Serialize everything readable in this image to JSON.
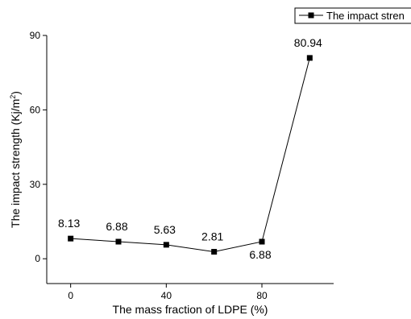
{
  "chart_data": {
    "type": "line",
    "title": "",
    "xlabel": "The mass fraction of LDPE (%)",
    "ylabel_main": "The impact strength (Kj/m",
    "ylabel_sup": "2",
    "ylabel_close": ")",
    "xlim": [
      -10,
      110
    ],
    "ylim": [
      -10,
      90
    ],
    "xticks": [
      0,
      40,
      80
    ],
    "xtick_labels": [
      "0",
      "40",
      "80"
    ],
    "yticks": [
      0,
      30,
      60,
      90
    ],
    "ytick_labels": [
      "0",
      "30",
      "60",
      "90"
    ],
    "grid": false,
    "legend_position": "top-right",
    "series": [
      {
        "name": "The impact stren",
        "color": "#000000",
        "marker": "square",
        "x": [
          0,
          20,
          40,
          60,
          80,
          100
        ],
        "y": [
          8.13,
          6.88,
          5.63,
          2.81,
          6.88,
          80.94
        ],
        "labels": [
          "8.13",
          "6.88",
          "5.63",
          "2.81",
          "6.88",
          "80.94"
        ],
        "label_side": [
          "above",
          "above",
          "above",
          "above",
          "below",
          "above"
        ]
      }
    ]
  }
}
